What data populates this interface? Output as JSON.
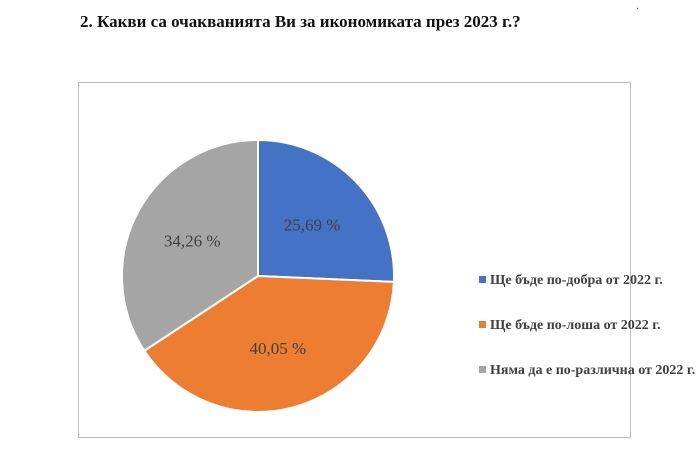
{
  "question": "2. Какви са очакванията Ви за икономиката през 2023 г.?",
  "corner_mark": "·",
  "chart_data": {
    "type": "pie",
    "start_angle_deg": 0,
    "direction": "clockwise",
    "slices": [
      {
        "label": "Ще бъде по-добра  от 2022 г.",
        "value": 25.69,
        "text": "25,69 %",
        "color": "#4472C4"
      },
      {
        "label": "Ще бъде по-лоша  от 2022 г.",
        "value": 40.05,
        "text": "40,05 %",
        "color": "#ED7D31"
      },
      {
        "label": "Няма да е по-различна  от 2022 г.",
        "value": 34.26,
        "text": "34,26 %",
        "color": "#A5A5A5"
      }
    ],
    "legend_position": "right"
  }
}
